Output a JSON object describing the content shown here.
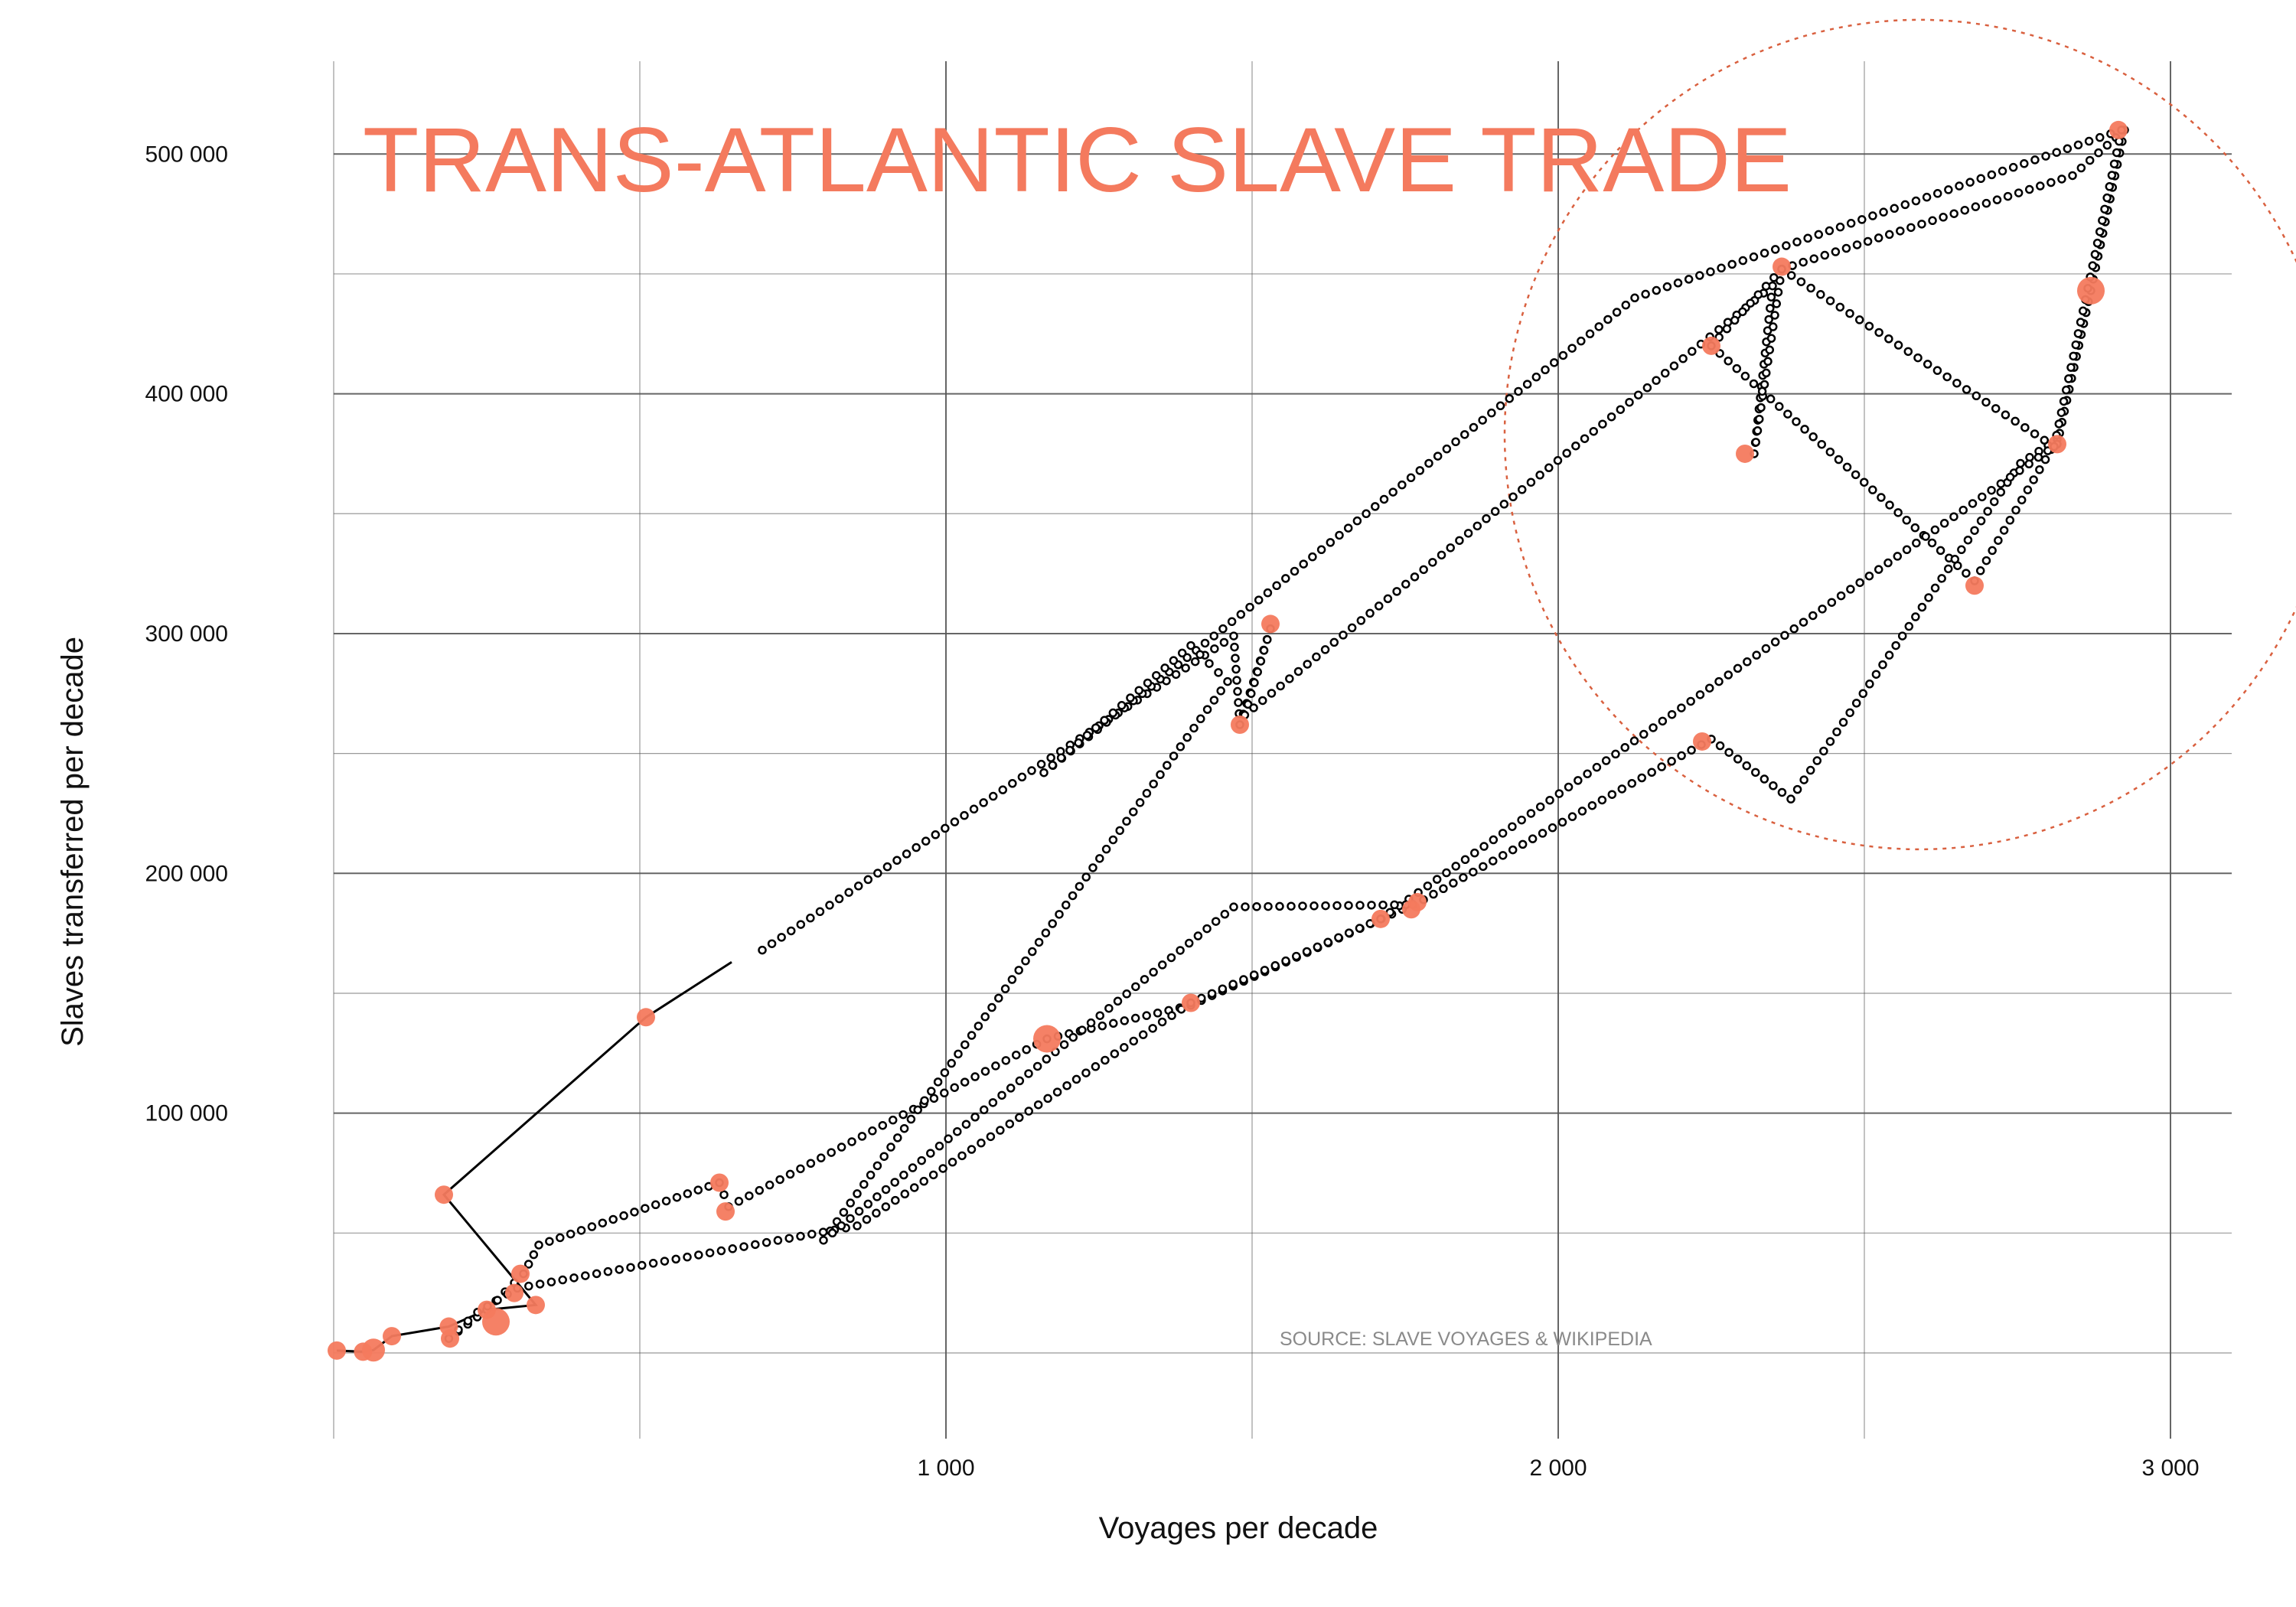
{
  "chart_data": {
    "type": "scatter",
    "title": "TRANS-ATLANTIC SLAVE TRADE",
    "xlabel": "Voyages per decade",
    "ylabel": "Slaves transferred per decade",
    "source": "SOURCE: SLAVE VOYAGES & WIKIPEDIA",
    "xlim": [
      -60,
      3100
    ],
    "ylim": [
      -35000,
      537000
    ],
    "x_ticks": [
      {
        "value": 1000,
        "label": "1 000"
      },
      {
        "value": 2000,
        "label": "2 000"
      },
      {
        "value": 3000,
        "label": "3 000"
      }
    ],
    "y_ticks": [
      {
        "value": 100000,
        "label": "100 000"
      },
      {
        "value": 200000,
        "label": "200 000"
      },
      {
        "value": 300000,
        "label": "300 000"
      },
      {
        "value": 400000,
        "label": "400 000"
      },
      {
        "value": 500000,
        "label": "500 000"
      }
    ],
    "grid": true,
    "colors": {
      "points": "#f47a5e",
      "title": "#f47a5e",
      "path": "#000000",
      "highlight_circle": "#d9603f",
      "grid": "#555555"
    },
    "points": [
      {
        "x": 5,
        "y": 1000,
        "size": 2
      },
      {
        "x": 48,
        "y": 500,
        "size": 2
      },
      {
        "x": 65,
        "y": 1200,
        "size": 3
      },
      {
        "x": 95,
        "y": 7000,
        "size": 2
      },
      {
        "x": 180,
        "y": 66000,
        "size": 2
      },
      {
        "x": 188,
        "y": 11000,
        "size": 2
      },
      {
        "x": 190,
        "y": 6000,
        "size": 2
      },
      {
        "x": 250,
        "y": 18000,
        "size": 2
      },
      {
        "x": 265,
        "y": 13000,
        "size": 4
      },
      {
        "x": 295,
        "y": 25000,
        "size": 2
      },
      {
        "x": 305,
        "y": 33000,
        "size": 2
      },
      {
        "x": 330,
        "y": 20000,
        "size": 2
      },
      {
        "x": 510,
        "y": 140000,
        "size": 2
      },
      {
        "x": 630,
        "y": 71000,
        "size": 2
      },
      {
        "x": 640,
        "y": 59000,
        "size": 2
      },
      {
        "x": 1165,
        "y": 131000,
        "size": 4
      },
      {
        "x": 1400,
        "y": 146000,
        "size": 2
      },
      {
        "x": 1480,
        "y": 262000,
        "size": 2
      },
      {
        "x": 1530,
        "y": 304000,
        "size": 2
      },
      {
        "x": 1710,
        "y": 181000,
        "size": 2
      },
      {
        "x": 1760,
        "y": 185000,
        "size": 2
      },
      {
        "x": 1770,
        "y": 188000,
        "size": 2
      },
      {
        "x": 2235,
        "y": 255000,
        "size": 2
      },
      {
        "x": 2250,
        "y": 420000,
        "size": 2
      },
      {
        "x": 2305,
        "y": 375000,
        "size": 2
      },
      {
        "x": 2365,
        "y": 453000,
        "size": 2
      },
      {
        "x": 2680,
        "y": 320000,
        "size": 2
      },
      {
        "x": 2815,
        "y": 379000,
        "size": 2
      },
      {
        "x": 2870,
        "y": 443000,
        "size": 4
      },
      {
        "x": 2915,
        "y": 510000,
        "size": 2
      }
    ],
    "path_solid": [
      [
        5,
        1000
      ],
      [
        48,
        500
      ],
      [
        65,
        1200
      ],
      [
        95,
        7000
      ],
      [
        188,
        11000
      ],
      [
        250,
        18000
      ],
      [
        330,
        20000
      ],
      [
        180,
        66000
      ],
      [
        510,
        140000
      ],
      [
        650,
        163000
      ]
    ],
    "path_dotted": [
      [
        700,
        168000
      ],
      [
        1470,
        299000
      ],
      [
        1480,
        262000
      ],
      [
        1530,
        302000
      ],
      [
        1488,
        266000
      ],
      [
        2350,
        445000
      ],
      [
        2320,
        375000
      ],
      [
        2365,
        452000
      ],
      [
        2250,
        420000
      ],
      [
        2680,
        322000
      ],
      [
        2815,
        381000
      ],
      [
        2755,
        371000
      ],
      [
        2380,
        231000
      ],
      [
        2250,
        256000
      ],
      [
        1780,
        189000
      ],
      [
        1400,
        145000
      ],
      [
        1165,
        131000
      ],
      [
        645,
        61000
      ],
      [
        630,
        71000
      ],
      [
        335,
        45000
      ],
      [
        310,
        33000
      ],
      [
        250,
        18000
      ],
      [
        188,
        6000
      ],
      [
        235,
        17000
      ],
      [
        300,
        27000
      ],
      [
        855,
        53000
      ],
      [
        1400,
        146000
      ],
      [
        1710,
        181000
      ],
      [
        2815,
        379000
      ],
      [
        2870,
        443000
      ],
      [
        2925,
        510000
      ],
      [
        2840,
        491000
      ],
      [
        2365,
        452000
      ],
      [
        2810,
        378000
      ],
      [
        2920,
        510000
      ],
      [
        2125,
        440000
      ],
      [
        1160,
        242000
      ],
      [
        1400,
        295000
      ],
      [
        1460,
        280000
      ],
      [
        800,
        47000
      ],
      [
        1470,
        186000
      ],
      [
        1770,
        187000
      ]
    ]
  }
}
